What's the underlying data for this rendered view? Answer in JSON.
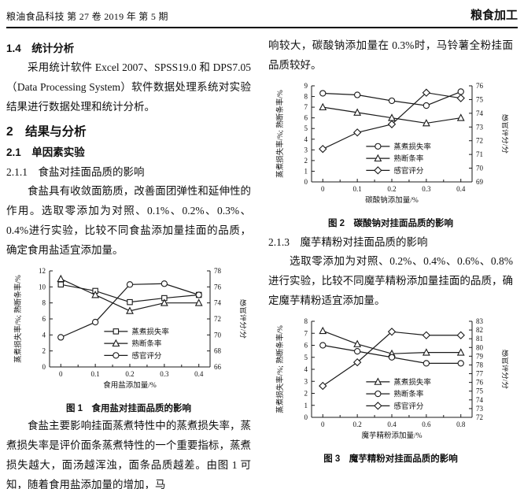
{
  "header": {
    "journal_info": "粮油食品科技 第 27 卷 2019 年 第 5 期",
    "section_tag": "粮食加工"
  },
  "left_column": {
    "h_stat": "1.4　统计分析",
    "p_stat": "采用统计软件 Excel 2007、SPSS19.0 和 DPS7.05（Data Processing System）软件数据处理系统对实验结果进行数据处理和统计分析。",
    "h_results": "2　结果与分析",
    "h_single": "2.1　单因素实验",
    "h_salt": "2.1.1　食盐对挂面品质的影响",
    "p_salt": "食盐具有收敛面筋质，改善面团弹性和延伸性的作用。选取零添加为对照、0.1%、0.2%、0.3%、0.4%进行实验，比较不同食盐添加量挂面的品质，确定食用盐适宜添加量。",
    "p_salt2": "食盐主要影响挂面蒸煮特性中的蒸煮损失率，蒸煮损失率是评价面条蒸煮特性的一个重要指标，蒸煮损失越大，面汤越浑浊，面条品质越差。由图 1 可知，随着食用盐添加量的增加，马"
  },
  "right_column": {
    "p_cont": "响较大，碳酸钠添加量在 0.3%时，马铃薯全粉挂面品质较好。",
    "h_konjac": "2.1.3　魔芋精粉对挂面品质的影响",
    "p_konjac": "选取零添加为对照、0.2%、0.4%、0.6%、0.8%进行实验，比较不同魔芋精粉添加量挂面的品质，确定魔芋精粉适宜添加量。"
  },
  "chart_colors": {
    "line": "#1a1a1a",
    "marker_fill": "#ffffff"
  },
  "chart_data": [
    {
      "type": "line",
      "caption": "图 1　食用盐对挂面品质的影响",
      "xlabel": "食用盐添加量/%",
      "ylabel_left": "蒸煮损失率/%; 熟断条率/%",
      "ylabel_right": "感官评分/分",
      "x_categories": [
        "0",
        "0.1",
        "0.2",
        "0.3",
        "0.4"
      ],
      "left_axis": {
        "min": 0,
        "max": 12,
        "step": 2
      },
      "right_axis": {
        "min": 66,
        "max": 78,
        "step": 2
      },
      "legend_position": "inside-lower-middle",
      "series": [
        {
          "name": "蒸煮损失率",
          "marker": "square",
          "axis": "left",
          "values": [
            10.3,
            9.5,
            8.1,
            8.6,
            9.0
          ]
        },
        {
          "name": "熟断条率",
          "marker": "triangle",
          "axis": "left",
          "values": [
            11.0,
            9.0,
            7.0,
            8.0,
            8.0
          ]
        },
        {
          "name": "感官评分",
          "marker": "circle",
          "axis": "right",
          "values": [
            69.7,
            71.6,
            76.3,
            76.4,
            75.0
          ]
        }
      ]
    },
    {
      "type": "line",
      "caption": "图 2　碳酸钠对挂面品质的影响",
      "xlabel": "碳酸钠添加量/%",
      "ylabel_left": "蒸煮损失率/%; 熟断条率/%",
      "ylabel_right": "感官评分/分",
      "x_categories": [
        "0",
        "0.1",
        "0.2",
        "0.3",
        "0.4"
      ],
      "left_axis": {
        "min": 0,
        "max": 9,
        "step": 1
      },
      "right_axis": {
        "min": 69,
        "max": 76,
        "step": 1
      },
      "legend_position": "inside-lower-middle",
      "series": [
        {
          "name": "蒸煮损失率",
          "marker": "circle",
          "axis": "left",
          "values": [
            8.3,
            8.15,
            7.6,
            7.15,
            8.45
          ]
        },
        {
          "name": "熟断条率",
          "marker": "triangle",
          "axis": "left",
          "values": [
            7.0,
            6.5,
            6.0,
            5.5,
            6.0
          ]
        },
        {
          "name": "感官评分",
          "marker": "diamond",
          "axis": "right",
          "values": [
            71.4,
            72.6,
            73.2,
            75.5,
            75.1
          ]
        }
      ]
    },
    {
      "type": "line",
      "caption": "图 3　魔芋精粉对挂面品质的影响",
      "xlabel": "魔芋精粉添加量/%",
      "ylabel_left": "蒸煮损失率/%; 熟断条率/%",
      "ylabel_right": "感官评分/分",
      "x_categories": [
        "0",
        "0.2",
        "0.4",
        "0.6",
        "0.8"
      ],
      "left_axis": {
        "min": 0,
        "max": 8,
        "step": 1
      },
      "right_axis": {
        "min": 72,
        "max": 83,
        "step": 1
      },
      "legend_position": "inside-lower-middle",
      "series": [
        {
          "name": "蒸煮损失率",
          "marker": "triangle",
          "axis": "left",
          "values": [
            7.2,
            6.1,
            5.3,
            5.4,
            5.4
          ]
        },
        {
          "name": "熟断条率",
          "marker": "circle",
          "axis": "left",
          "values": [
            6.0,
            5.5,
            5.0,
            4.5,
            4.5
          ]
        },
        {
          "name": "感官评分",
          "marker": "diamond",
          "axis": "right",
          "values": [
            75.6,
            78.3,
            81.8,
            81.4,
            81.4
          ]
        }
      ]
    }
  ]
}
